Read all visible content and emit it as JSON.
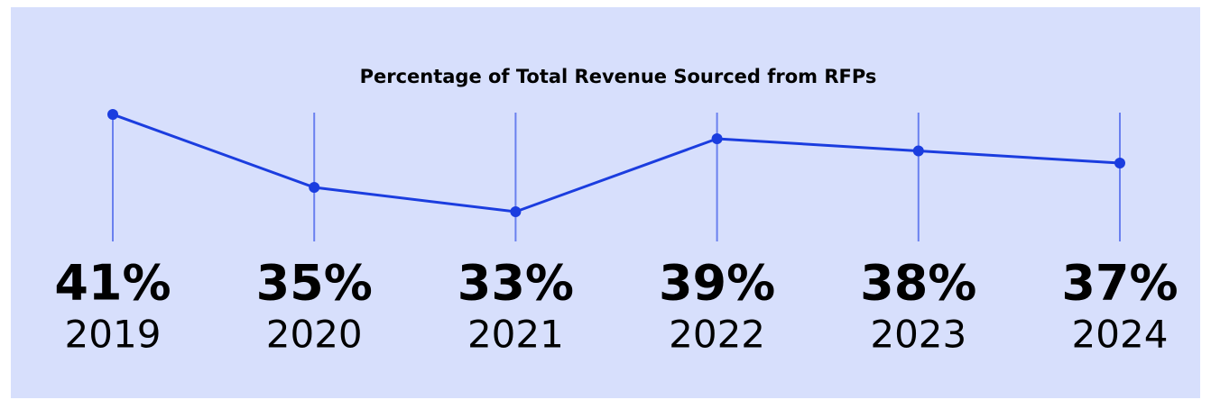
{
  "chart_data": {
    "type": "line",
    "title": "Percentage of Total Revenue Sourced from RFPs",
    "categories": [
      "2019",
      "2020",
      "2021",
      "2022",
      "2023",
      "2024"
    ],
    "values": [
      41,
      35,
      33,
      39,
      38,
      37
    ],
    "value_labels": [
      "41%",
      "35%",
      "33%",
      "39%",
      "38%",
      "37%"
    ],
    "color": "#1b3ddf"
  }
}
